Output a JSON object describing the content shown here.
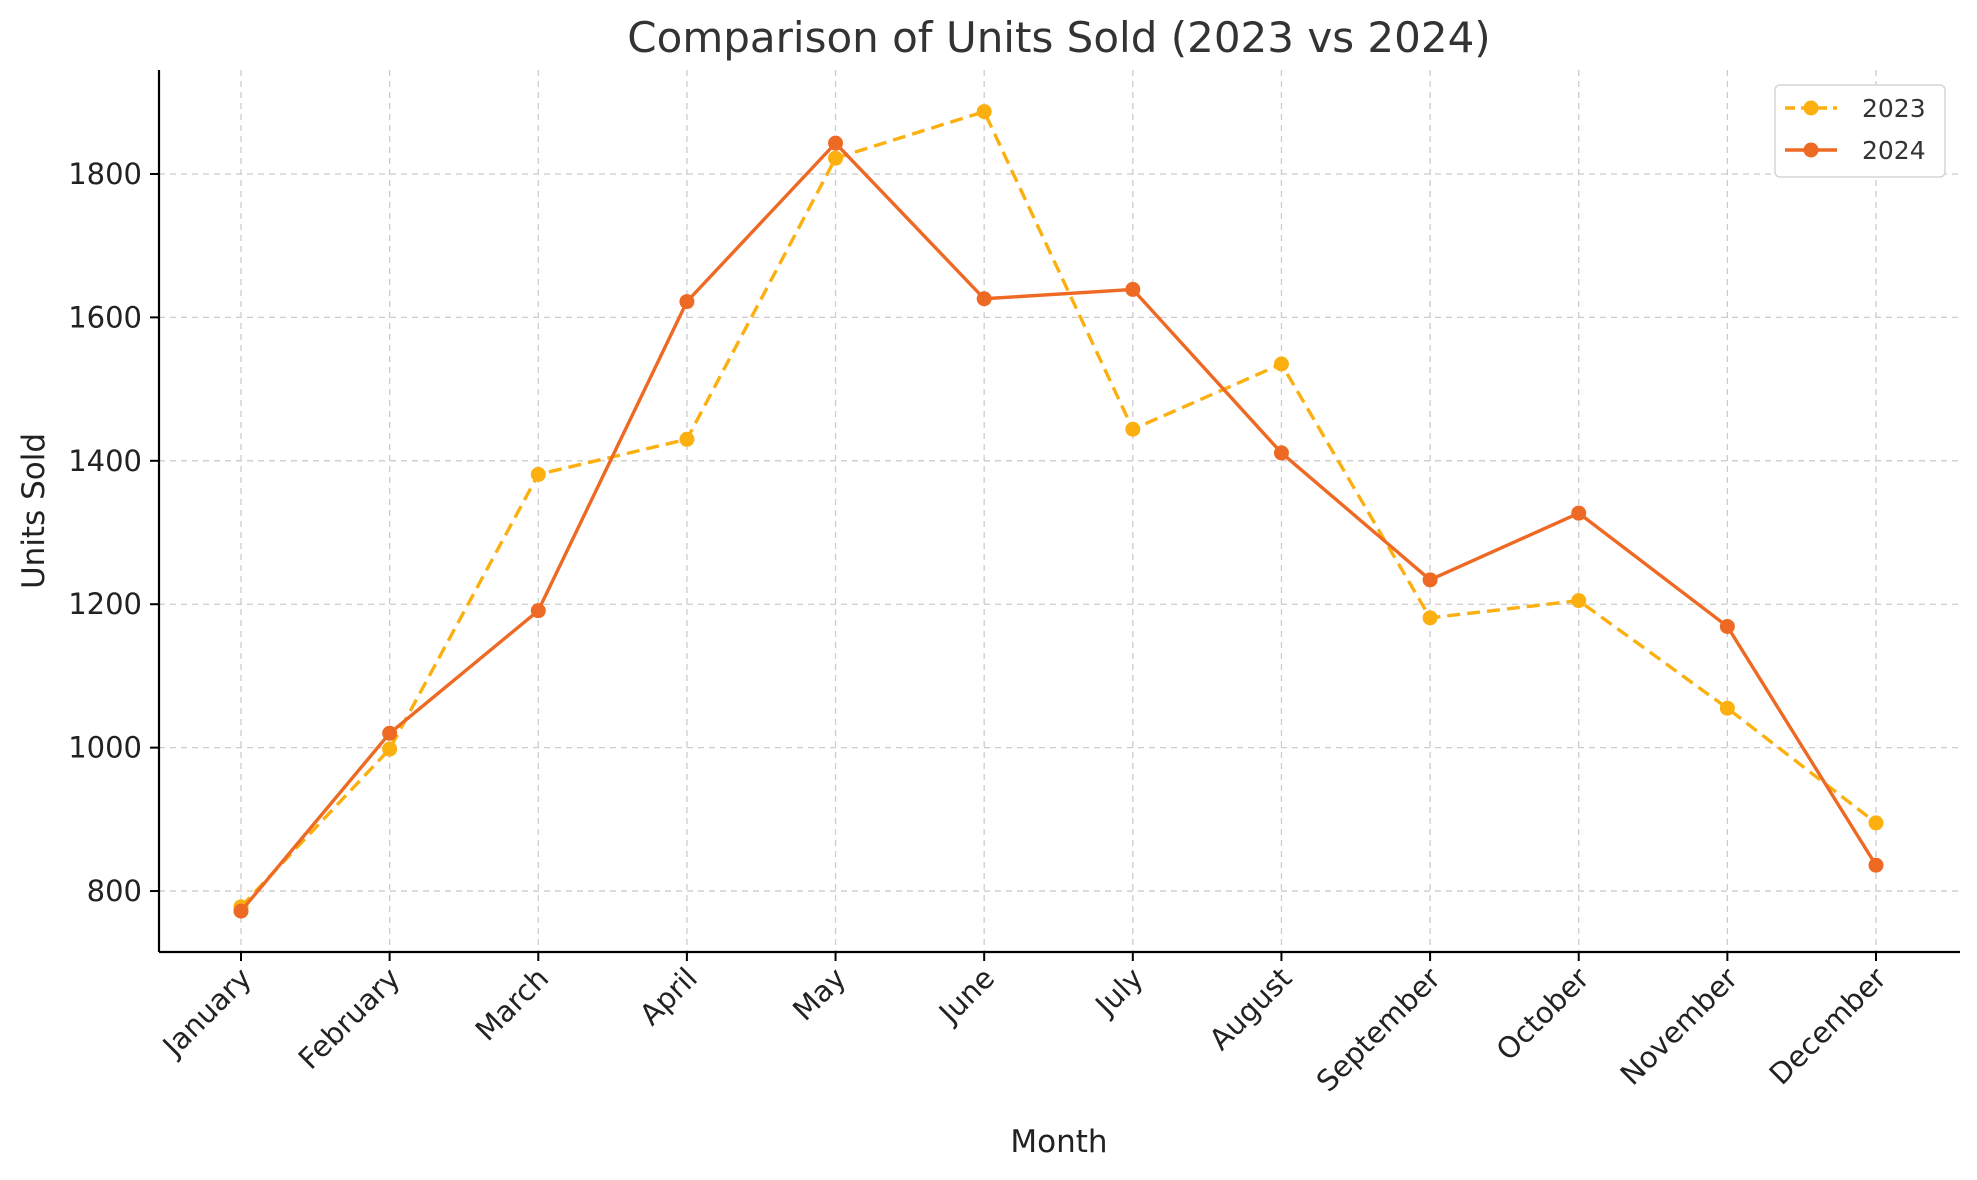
{
  "chart_data": {
    "type": "line",
    "title": "Comparison of Units Sold (2023 vs 2024)",
    "xlabel": "Month",
    "ylabel": "Units Sold",
    "categories": [
      "January",
      "February",
      "March",
      "April",
      "May",
      "June",
      "July",
      "August",
      "September",
      "October",
      "November",
      "December"
    ],
    "ylim": [
      715,
      1945
    ],
    "yticks": [
      800,
      1000,
      1200,
      1400,
      1600,
      1800
    ],
    "grid": true,
    "legend_position": "top-right",
    "series": [
      {
        "name": "2023",
        "color": "#FBB00F",
        "line_style": "dashed",
        "marker": "circle",
        "values": [
          778,
          998,
          1381,
          1430,
          1822,
          1887,
          1444,
          1535,
          1181,
          1205,
          1055,
          895
        ]
      },
      {
        "name": "2024",
        "color": "#EE6A24",
        "line_style": "solid",
        "marker": "circle",
        "values": [
          772,
          1020,
          1191,
          1622,
          1843,
          1626,
          1639,
          1411,
          1234,
          1327,
          1169,
          836
        ]
      }
    ]
  }
}
